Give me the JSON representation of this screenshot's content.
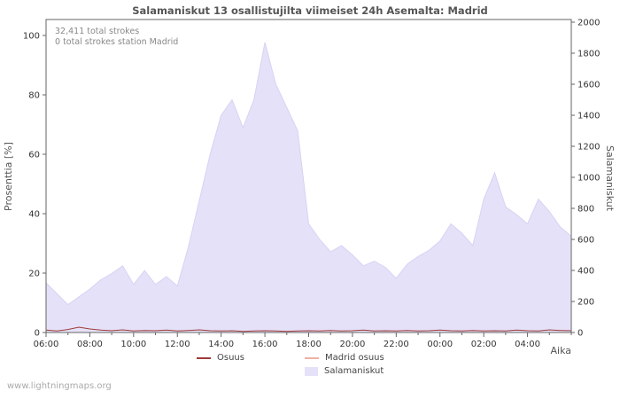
{
  "annotations": {
    "total": "32,411 total strokes",
    "station": "0 total strokes station Madrid"
  },
  "watermark": "www.lightningmaps.org",
  "chart_data": {
    "type": "area",
    "title": "Salamaniskut 13 osallistujilta viimeiset 24h Asemalta: Madrid",
    "x": [
      "06:00",
      "06:30",
      "07:00",
      "07:30",
      "08:00",
      "08:30",
      "09:00",
      "09:30",
      "10:00",
      "10:30",
      "11:00",
      "11:30",
      "12:00",
      "12:30",
      "13:00",
      "13:30",
      "14:00",
      "14:30",
      "15:00",
      "15:30",
      "16:00",
      "16:30",
      "17:00",
      "17:30",
      "18:00",
      "18:30",
      "19:00",
      "19:30",
      "20:00",
      "20:30",
      "21:00",
      "21:30",
      "22:00",
      "22:30",
      "23:00",
      "23:30",
      "00:00",
      "00:30",
      "01:00",
      "01:30",
      "02:00",
      "02:30",
      "03:00",
      "03:30",
      "04:00",
      "04:30",
      "05:00",
      "05:30",
      "06:00"
    ],
    "series": [
      {
        "name": "Salamaniskut",
        "type": "area",
        "axis": "right",
        "color": "#e5e1f8",
        "edge": "#d8d2f4",
        "values": [
          320,
          250,
          180,
          230,
          280,
          340,
          380,
          430,
          310,
          400,
          310,
          360,
          300,
          550,
          850,
          1150,
          1400,
          1500,
          1320,
          1500,
          1870,
          1600,
          1450,
          1300,
          700,
          600,
          520,
          560,
          500,
          430,
          460,
          420,
          350,
          440,
          490,
          530,
          590,
          700,
          640,
          560,
          860,
          1030,
          810,
          760,
          700,
          860,
          780,
          680,
          620
        ]
      },
      {
        "name": "Osuus",
        "type": "line",
        "axis": "left",
        "color": "#9e3a38",
        "values": [
          0.8,
          0.5,
          1.0,
          1.8,
          1.2,
          0.8,
          0.6,
          0.9,
          0.5,
          0.7,
          0.6,
          0.8,
          0.5,
          0.7,
          0.9,
          0.6,
          0.5,
          0.6,
          0.4,
          0.5,
          0.6,
          0.5,
          0.4,
          0.5,
          0.6,
          0.5,
          0.7,
          0.5,
          0.6,
          0.8,
          0.5,
          0.6,
          0.5,
          0.7,
          0.5,
          0.6,
          0.8,
          0.6,
          0.5,
          0.7,
          0.5,
          0.6,
          0.5,
          0.8,
          0.6,
          0.5,
          0.9,
          0.7,
          0.6
        ]
      },
      {
        "name": "Madrid osuus",
        "type": "line",
        "axis": "left",
        "color": "#f0b0a4",
        "values": [
          0,
          0,
          0,
          0,
          0,
          0,
          0,
          0,
          0,
          0,
          0,
          0,
          0,
          0,
          0,
          0,
          0,
          0,
          0,
          0,
          0,
          0,
          0,
          0,
          0,
          0,
          0,
          0,
          0,
          0,
          0,
          0,
          0,
          0,
          0,
          0,
          0,
          0,
          0,
          0,
          0,
          0,
          0,
          0,
          0,
          0,
          0,
          0,
          0
        ]
      }
    ],
    "left_axis": {
      "label": "Prosenttia  [%]",
      "ticks": [
        0,
        20,
        40,
        60,
        80,
        100
      ],
      "max": 100
    },
    "right_axis": {
      "label": "Salamaniskut",
      "ticks": [
        0,
        200,
        400,
        600,
        800,
        1000,
        1200,
        1400,
        1600,
        1800,
        2000
      ],
      "max": 2000
    },
    "x_axis": {
      "label": "Aika",
      "major_every_hours": 2
    },
    "legend": [
      {
        "label": "Osuus",
        "swatch": "line",
        "color": "#9e3a38"
      },
      {
        "label": "Madrid osuus",
        "swatch": "line",
        "color": "#f0b0a4"
      },
      {
        "label": "Salamaniskut",
        "swatch": "area",
        "color": "#e5e1f8"
      }
    ]
  }
}
